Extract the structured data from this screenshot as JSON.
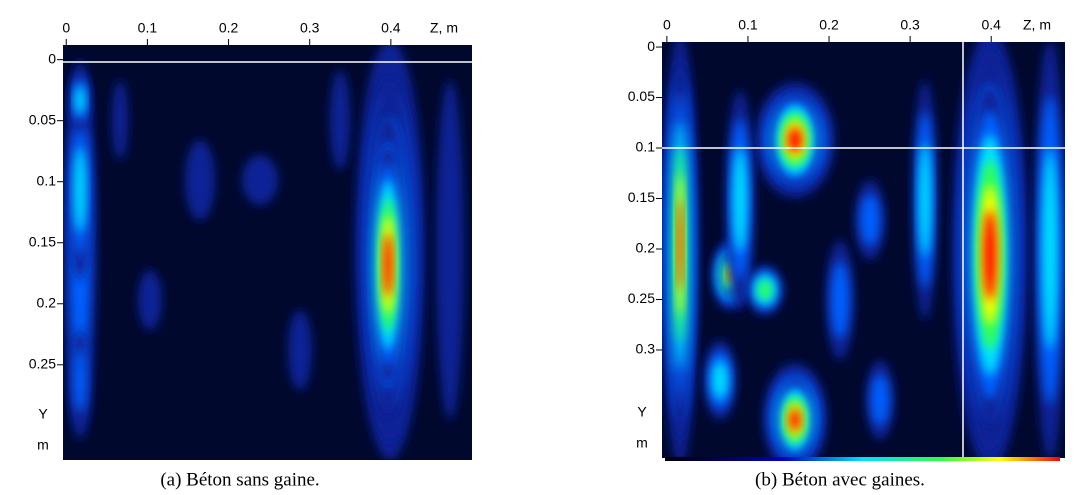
{
  "chart_data": [
    {
      "type": "heatmap",
      "caption": "(a) Béton sans gaine.",
      "xlabel": "Z, m",
      "ylabel": [
        "Y",
        "m"
      ],
      "xlim": [
        -0.004,
        0.5
      ],
      "ylim": [
        -0.012,
        0.328
      ],
      "xticks": [
        0,
        0.1,
        0.2,
        0.3,
        0.4
      ],
      "yticks": [
        0,
        0.05,
        0.1,
        0.15,
        0.2,
        0.25
      ]
    },
    {
      "type": "heatmap",
      "caption": "(b) Béton avec gaines.",
      "xlabel": "Z, m",
      "ylabel": [
        "Y",
        "m"
      ],
      "xlim": [
        -0.006,
        0.491
      ],
      "ylim": [
        -0.005,
        0.407
      ],
      "xticks": [
        0,
        0.1,
        0.2,
        0.3,
        0.4
      ],
      "yticks": [
        0,
        0.05,
        0.1,
        0.15,
        0.2,
        0.25,
        0.3
      ]
    }
  ]
}
